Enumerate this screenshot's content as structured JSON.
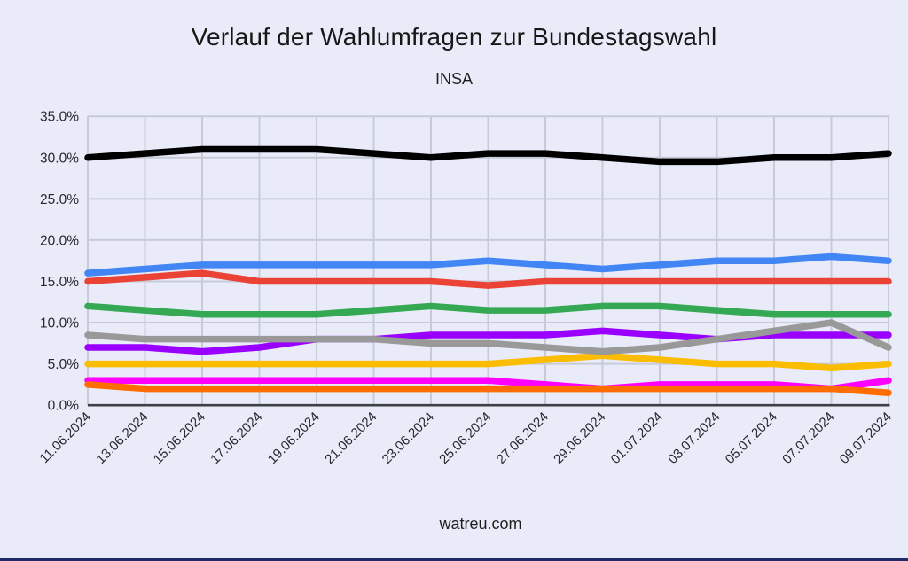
{
  "page": {
    "background_color": "#E9ECF8",
    "bottom_bar_color": "#1F2C66"
  },
  "header": {
    "title": "Verlauf der Wahlumfragen zur Bundestagswahl",
    "subtitle": "INSA"
  },
  "footer": {
    "text": "watreu.com"
  },
  "chart_data": {
    "type": "line",
    "title": "Verlauf der Wahlumfragen zur Bundestagswahl",
    "subtitle": "INSA",
    "grid": true,
    "legend": "none",
    "x_tick_rotation": -45,
    "ylim": [
      0,
      35
    ],
    "y_ticks": [
      "0.0%",
      "5.0%",
      "10.0%",
      "15.0%",
      "20.0%",
      "25.0%",
      "30.0%",
      "35.0%"
    ],
    "x": [
      "11.06.2024",
      "13.06.2024",
      "15.06.2024",
      "17.06.2024",
      "19.06.2024",
      "21.06.2024",
      "23.06.2024",
      "25.06.2024",
      "27.06.2024",
      "29.06.2024",
      "01.07.2024",
      "03.07.2024",
      "05.07.2024",
      "07.07.2024",
      "09.07.2024"
    ],
    "series": [
      {
        "name": "magenta",
        "color": "#FF00FF",
        "values": [
          3,
          3,
          3,
          3,
          3,
          3,
          3,
          3,
          2.5,
          2,
          2.5,
          2.5,
          2.5,
          2,
          3
        ]
      },
      {
        "name": "orange",
        "color": "#FF6D01",
        "values": [
          2.5,
          2,
          2,
          2,
          2,
          2,
          2,
          2,
          2,
          2,
          2,
          2,
          2,
          2,
          1.5
        ]
      },
      {
        "name": "yellow",
        "color": "#FBBC04",
        "values": [
          5,
          5,
          5,
          5,
          5,
          5,
          5,
          5,
          5.5,
          6,
          5.5,
          5,
          5,
          4.5,
          5
        ]
      },
      {
        "name": "purple",
        "color": "#9900FF",
        "values": [
          7,
          7,
          6.5,
          7,
          8,
          8,
          8.5,
          8.5,
          8.5,
          9,
          8.5,
          8,
          8.5,
          8.5,
          8.5
        ]
      },
      {
        "name": "gray",
        "color": "#999999",
        "values": [
          8.5,
          8,
          8,
          8,
          8,
          8,
          7.5,
          7.5,
          7,
          6.5,
          7,
          8,
          9,
          10,
          7
        ]
      },
      {
        "name": "green",
        "color": "#34A853",
        "values": [
          12,
          11.5,
          11,
          11,
          11,
          11.5,
          12,
          11.5,
          11.5,
          12,
          12,
          11.5,
          11,
          11,
          11
        ]
      },
      {
        "name": "red",
        "color": "#EA4335",
        "values": [
          15,
          15.5,
          16,
          15,
          15,
          15,
          15,
          14.5,
          15,
          15,
          15,
          15,
          15,
          15,
          15
        ]
      },
      {
        "name": "blue",
        "color": "#4285F4",
        "values": [
          16,
          16.5,
          17,
          17,
          17,
          17,
          17,
          17.5,
          17,
          16.5,
          17,
          17.5,
          17.5,
          18,
          17.5
        ]
      },
      {
        "name": "black",
        "color": "#000000",
        "values": [
          30,
          30.5,
          31,
          31,
          31,
          30.5,
          30,
          30.5,
          30.5,
          30,
          29.5,
          29.5,
          30,
          30,
          30.5
        ]
      }
    ]
  }
}
